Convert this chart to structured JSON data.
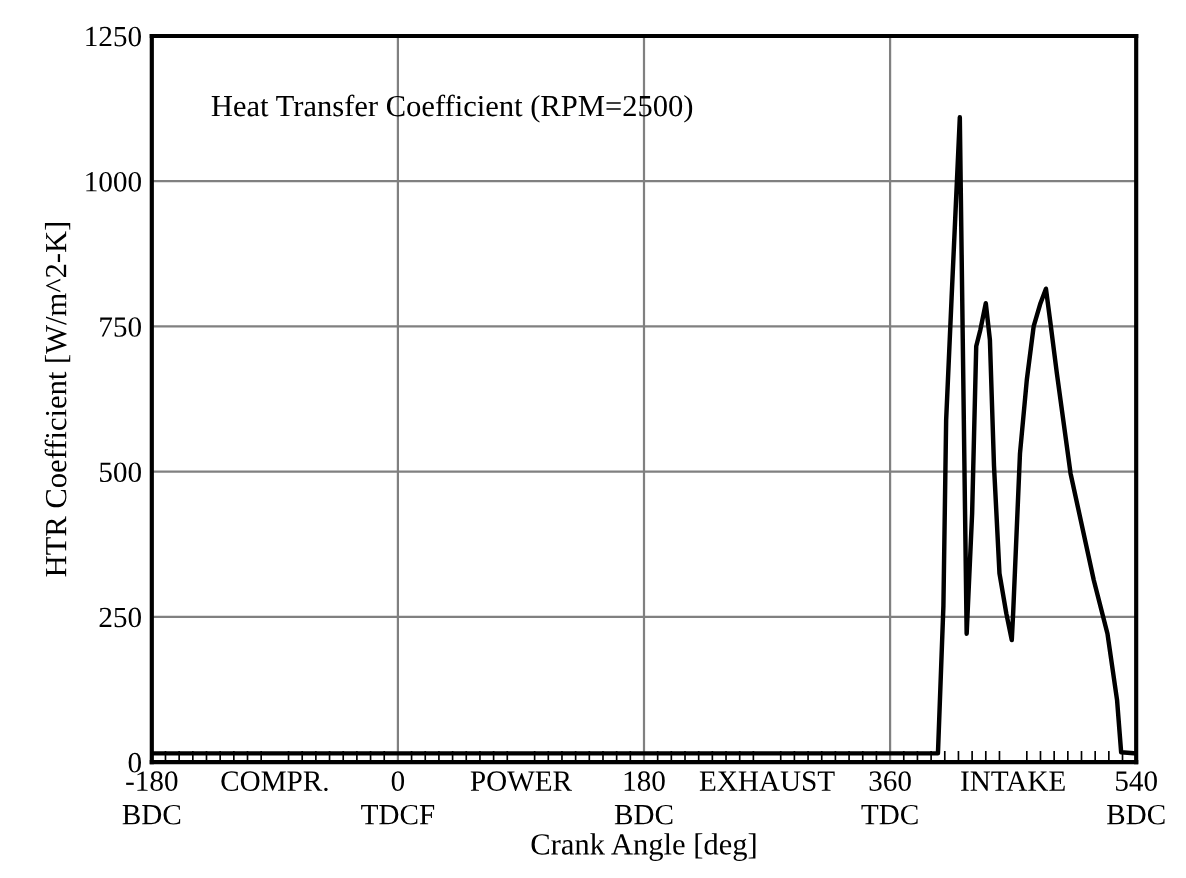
{
  "chart_data": {
    "type": "line",
    "title": "Heat Transfer Coefficient (RPM=2500)",
    "xlabel": "Crank Angle [deg]",
    "ylabel": "HTR Coefficient [W/m^2-K]",
    "x": [
      -180,
      395,
      399,
      401,
      405,
      411,
      416,
      420,
      423,
      426,
      430,
      433,
      436,
      440,
      445,
      449,
      450,
      455,
      460,
      465,
      470,
      474,
      477,
      482,
      492,
      509,
      519,
      526,
      529,
      540
    ],
    "series": [
      {
        "color": "#000000",
        "values": [
          15,
          15,
          269,
          589,
          800,
          1110,
          221,
          428,
          716,
          744,
          790,
          727,
          510,
          325,
          256,
          210,
          256,
          531,
          658,
          750,
          790,
          815,
          761,
          669,
          497,
          313,
          221,
          107,
          17,
          15
        ]
      }
    ],
    "xlim": [
      -180,
      540
    ],
    "ylim": [
      0,
      1250
    ],
    "xticks": [
      {
        "value": -180,
        "label": "-180\nBDC"
      },
      {
        "value": -90,
        "label": "COMPR."
      },
      {
        "value": 0,
        "label": "0\nTDCF"
      },
      {
        "value": 90,
        "label": "POWER"
      },
      {
        "value": 180,
        "label": "180\nBDC"
      },
      {
        "value": 270,
        "label": "EXHAUST"
      },
      {
        "value": 360,
        "label": "360\nTDC"
      },
      {
        "value": 450,
        "label": "INTAKE"
      },
      {
        "value": 540,
        "label": "540\nBDC"
      }
    ],
    "yticks": [
      0,
      250,
      500,
      750,
      1000,
      1250
    ],
    "grid": true,
    "legend": false
  }
}
